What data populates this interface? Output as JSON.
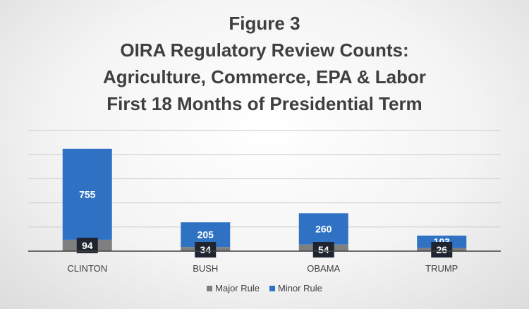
{
  "title_lines": [
    "Figure 3",
    "OIRA Regulatory Review Counts:",
    "Agriculture, Commerce, EPA & Labor",
    "First 18 Months of Presidential Term"
  ],
  "colors": {
    "major": "#7f7f7f",
    "minor": "#2f72c4",
    "label_box": "#1f2530",
    "label_text_on_blue": "#ffffff",
    "gridline": "#c9c9c9",
    "axis": "#404040"
  },
  "legend": {
    "major_label": "Major Rule",
    "minor_label": "Minor Rule",
    "placement": "bottom"
  },
  "chart_data": {
    "type": "bar",
    "stacked": true,
    "categories": [
      "CLINTON",
      "BUSH",
      "OBAMA",
      "TRUMP"
    ],
    "series": [
      {
        "name": "Major Rule",
        "values": [
          94,
          34,
          54,
          26
        ]
      },
      {
        "name": "Minor Rule",
        "values": [
          755,
          205,
          260,
          103
        ]
      }
    ],
    "ylim": [
      0,
      1000
    ],
    "grid": true,
    "gridlines": [
      200,
      400,
      600,
      800,
      1000
    ],
    "xlabel": "",
    "ylabel": ""
  }
}
